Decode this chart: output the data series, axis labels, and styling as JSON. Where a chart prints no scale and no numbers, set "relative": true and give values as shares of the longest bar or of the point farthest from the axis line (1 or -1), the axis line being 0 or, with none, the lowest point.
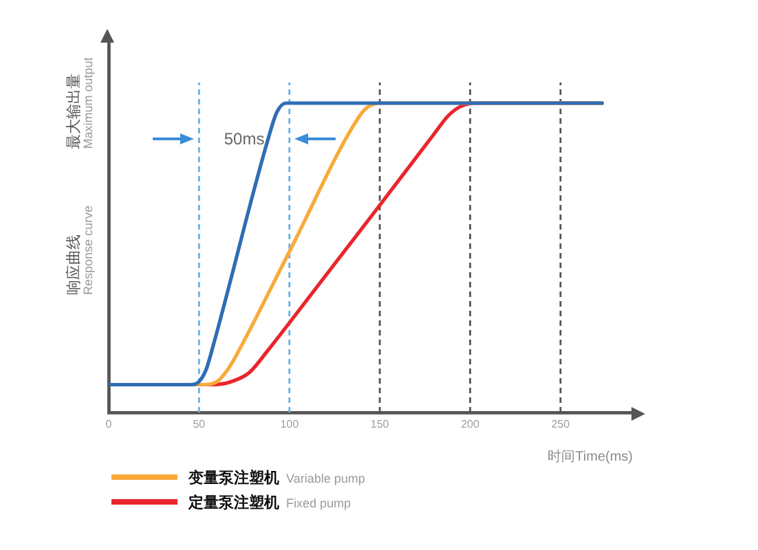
{
  "chart_data": {
    "type": "line",
    "xlabel": "时间Time(ms)",
    "ylabel": "响应曲线 Response curve",
    "relative": true,
    "xlim": [
      0,
      290
    ],
    "xticks": [
      0,
      50,
      100,
      150,
      200,
      250
    ],
    "grid": false,
    "legend": "bottom left",
    "marker": "none",
    "line_style": "solid",
    "series": [
      {
        "color": "#2f6db5",
        "x": [
          0,
          45,
          50,
          54,
          58,
          89,
          93,
          98,
          273
        ],
        "values": [
          0.09,
          0.09,
          0.1,
          0.14,
          0.22,
          0.9,
          0.97,
          1,
          1
        ]
      },
      {
        "name": "变量泵注塑机 Variable pump",
        "color": "#f8aa3c",
        "x": [
          0,
          52,
          60,
          66,
          72,
          100,
          139,
          144,
          151,
          273
        ],
        "values": [
          0.09,
          0.09,
          0.1,
          0.14,
          0.2,
          0.52,
          0.96,
          0.99,
          1,
          1
        ]
      },
      {
        "name": "定量泵注塑机 Fixed pump",
        "color": "#e8262b",
        "x": [
          0,
          58,
          68,
          78,
          88,
          100,
          150,
          180,
          188,
          195,
          204,
          273
        ],
        "values": [
          0.09,
          0.09,
          0.1,
          0.13,
          0.2,
          0.29,
          0.67,
          0.9,
          0.96,
          0.99,
          1,
          1
        ]
      }
    ],
    "ref_lines": [
      {
        "axis": "x",
        "value": 50,
        "color": "#6ab0e4",
        "line_style": "dashed"
      },
      {
        "axis": "x",
        "value": 100,
        "color": "#6ab0e4",
        "line_style": "dashed"
      },
      {
        "axis": "x",
        "value": 150,
        "color": "#555555",
        "line_style": "dashed"
      },
      {
        "axis": "x",
        "value": 200,
        "color": "#555555",
        "line_style": "dashed"
      },
      {
        "axis": "x",
        "value": 250,
        "color": "#555555",
        "line_style": "dashed"
      }
    ],
    "annotations": [
      "50ms",
      "最大输出量 Maximum output"
    ]
  }
}
